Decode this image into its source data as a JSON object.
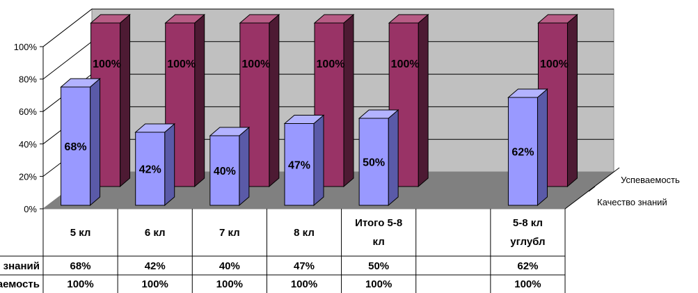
{
  "chart_data": {
    "type": "bar",
    "categories": [
      "5 кл",
      "6 кл",
      "7 кл",
      "8 кл",
      "Итого 5-8 кл",
      "",
      "5-8 кл углубл"
    ],
    "series": [
      {
        "name": "Качество знаний",
        "table_label": "Качество знаний",
        "values": [
          68,
          42,
          40,
          47,
          50,
          null,
          62
        ],
        "labels": [
          "68%",
          "42%",
          "40%",
          "47%",
          "50%",
          "",
          "62%"
        ],
        "color": "#9999ff"
      },
      {
        "name": "Успеваемость",
        "table_label": "Успеваемость",
        "values": [
          100,
          100,
          100,
          100,
          100,
          null,
          100
        ],
        "labels": [
          "100%",
          "100%",
          "100%",
          "100%",
          "100%",
          "",
          "100%"
        ],
        "color": "#993366"
      }
    ],
    "y_ticks": [
      "0%",
      "20%",
      "40%",
      "60%",
      "80%",
      "100%"
    ],
    "ylim": [
      0,
      100
    ],
    "grid": true,
    "legend_position": "right",
    "data_table": true,
    "view": "3d"
  }
}
